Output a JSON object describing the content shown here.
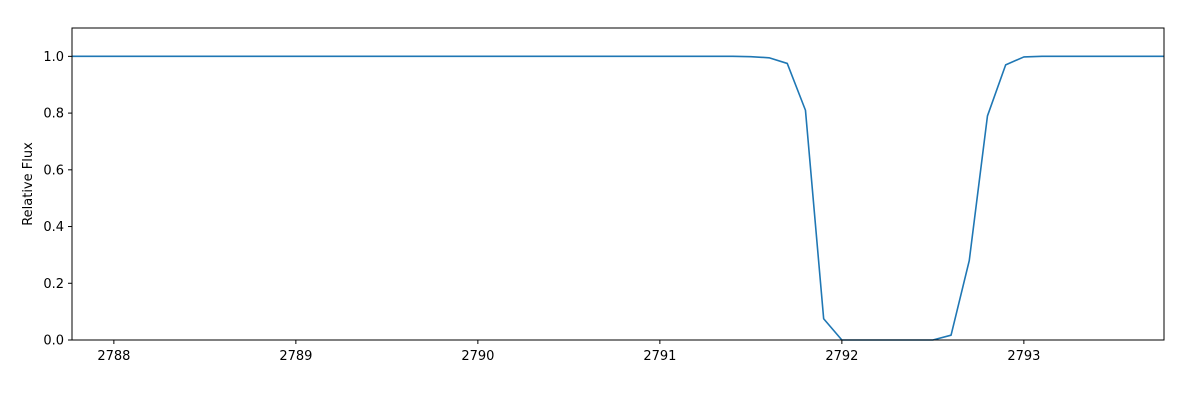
{
  "chart_data": {
    "type": "line",
    "title": "",
    "xlabel": "",
    "ylabel": "Relative Flux",
    "xlim": [
      2787.77,
      2793.77
    ],
    "ylim": [
      0.0,
      1.1
    ],
    "grid": false,
    "legend": "none",
    "xticks": [
      2788,
      2789,
      2790,
      2791,
      2792,
      2793
    ],
    "xtick_labels": [
      "2788",
      "2789",
      "2790",
      "2791",
      "2792",
      "2793"
    ],
    "yticks": [
      0.0,
      0.2,
      0.4,
      0.6,
      0.8,
      1.0
    ],
    "ytick_labels": [
      "0.0",
      "0.2",
      "0.4",
      "0.6",
      "0.8",
      "1.0"
    ],
    "series": [
      {
        "color": "#1f77b4",
        "x": [
          2787.77,
          2788.0,
          2789.0,
          2790.0,
          2791.0,
          2791.4,
          2791.5,
          2791.6,
          2791.7,
          2791.8,
          2791.9,
          2792.0,
          2792.1,
          2792.2,
          2792.3,
          2792.4,
          2792.5,
          2792.6,
          2792.7,
          2792.8,
          2792.9,
          2793.0,
          2793.1,
          2793.2,
          2793.77
        ],
        "y": [
          1.0,
          1.0,
          1.0,
          1.0,
          1.0,
          1.0,
          0.999,
          0.995,
          0.975,
          0.81,
          0.075,
          0.0,
          0.0,
          0.0,
          0.0,
          0.0,
          0.0,
          0.017,
          0.28,
          0.79,
          0.97,
          0.998,
          1.0,
          1.0,
          1.0
        ]
      }
    ]
  }
}
